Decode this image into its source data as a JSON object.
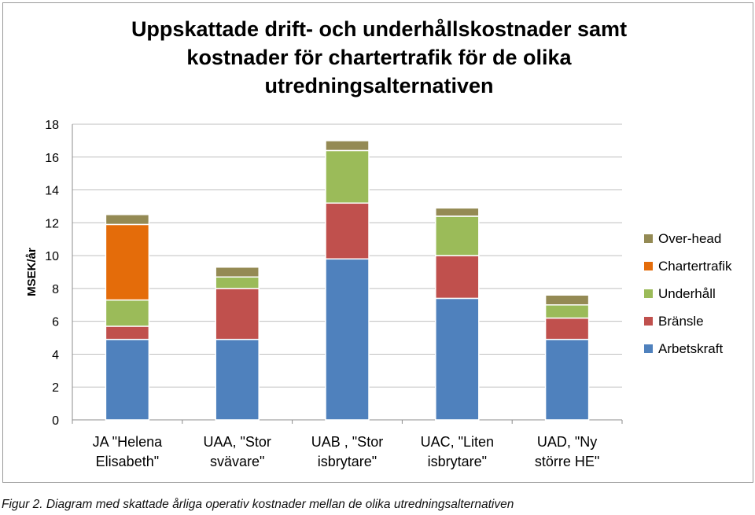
{
  "chart_data": {
    "type": "bar",
    "stacked": true,
    "title": "Uppskattade drift- och underhållskostnader samt kostnader för chartertrafik för de olika utredningsalternativen",
    "title_lines": [
      "Uppskattade drift- och underhållskostnader samt",
      "kostnader för chartertrafik för de olika",
      "utredningsalternativen"
    ],
    "ylabel": "MSEK/år",
    "xlabel": "",
    "ylim": [
      0,
      18
    ],
    "yticks": [
      0,
      2,
      4,
      6,
      8,
      10,
      12,
      14,
      16,
      18
    ],
    "grid": true,
    "legend_position": "right",
    "categories": [
      [
        "JA \"Helena",
        "Elisabeth\""
      ],
      [
        "UAA, \"Stor",
        "svävare\""
      ],
      [
        "UAB , \"Stor",
        "isbrytare\""
      ],
      [
        "UAC, \"Liten",
        "isbrytare\""
      ],
      [
        "UAD, \"Ny",
        "större HE\""
      ]
    ],
    "series": [
      {
        "name": "Arbetskraft",
        "color": "#4f81bd",
        "values": [
          4.9,
          4.9,
          9.8,
          7.4,
          4.9
        ]
      },
      {
        "name": "Bränsle",
        "color": "#c0504d",
        "values": [
          0.8,
          3.1,
          3.4,
          2.6,
          1.3
        ]
      },
      {
        "name": "Underhåll",
        "color": "#9bbb59",
        "values": [
          1.6,
          0.7,
          3.2,
          2.4,
          0.8
        ]
      },
      {
        "name": "Chartertrafik",
        "color": "#e46c0a",
        "values": [
          4.6,
          0,
          0,
          0,
          0
        ]
      },
      {
        "name": "Over-head",
        "color": "#948a54",
        "values": [
          0.6,
          0.6,
          0.6,
          0.5,
          0.6
        ]
      }
    ]
  },
  "caption": {
    "figure": "Figur 2.",
    "text": " Diagram med skattade årliga operativ kostnader mellan de olika utredningsalternativen"
  }
}
